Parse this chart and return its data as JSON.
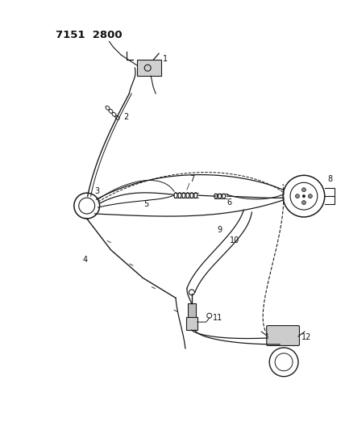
{
  "title": "7151  2800",
  "bg_color": "#ffffff",
  "line_color": "#1a1a1a",
  "label_color": "#111111",
  "label_fontsize": 7,
  "fig_width": 4.28,
  "fig_height": 5.33,
  "dpi": 100
}
